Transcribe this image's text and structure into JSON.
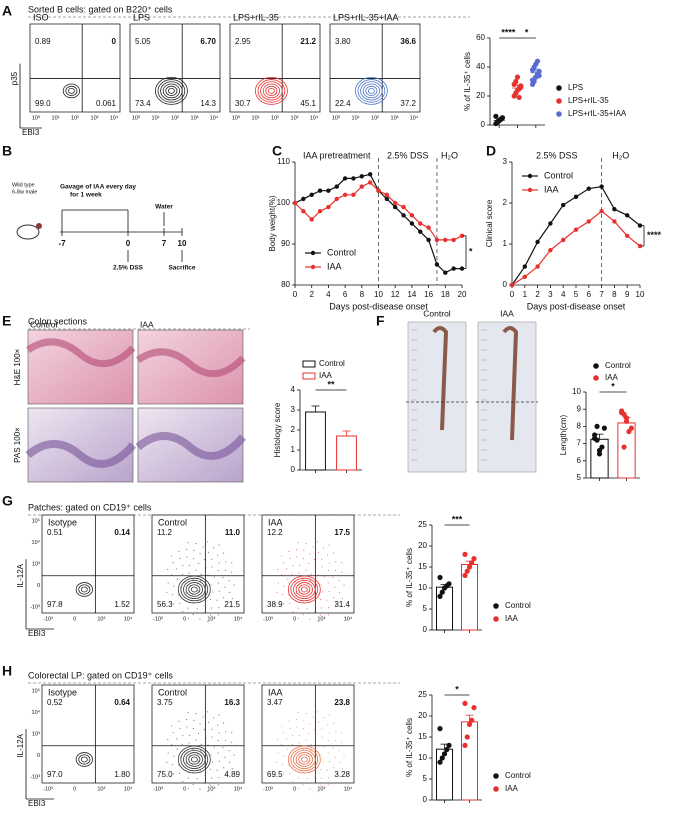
{
  "panels": {
    "A": {
      "label": "A",
      "title": "Sorted B cells: gated on B220⁺ cells",
      "x_axis": "EBI3",
      "y_axis": "p35",
      "x_ticks": [
        "10⁰",
        "10¹",
        "10²",
        "10³",
        "10⁴"
      ],
      "plots": [
        {
          "name": "ISO",
          "color": "#222222",
          "quadrants": [
            "0.89",
            "0",
            "99.0",
            "0.061"
          ]
        },
        {
          "name": "LPS",
          "color": "#222222",
          "quadrants": [
            "5.05",
            "6.70",
            "73.4",
            "14.3"
          ]
        },
        {
          "name": "LPS+rIL-35",
          "color": "#e8312f",
          "quadrants": [
            "2.95",
            "21.2",
            "30.7",
            "45.1"
          ]
        },
        {
          "name": "LPS+rIL-35+IAA",
          "color": "#4a74c9",
          "quadrants": [
            "3.80",
            "36.6",
            "22.4",
            "37.2"
          ]
        }
      ]
    },
    "B": {
      "label": "B",
      "mouse": [
        "Wild type",
        "6-8w male"
      ],
      "gavage": [
        "Gavage of IAA every day",
        "for 1 week"
      ],
      "water": "Water",
      "days": [
        "-7",
        "0",
        "7",
        "10"
      ],
      "dss": "2.5% DSS",
      "end": "Sacrifice"
    },
    "C": {
      "label": "C"
    },
    "D": {
      "label": "D"
    },
    "E": {
      "label": "E",
      "title": "Colon sections",
      "columns": [
        "Control",
        "IAA"
      ],
      "rows": [
        "H&E 100×",
        "PAS 100×"
      ]
    },
    "F": {
      "label": "F",
      "columns": [
        "Control",
        "IAA"
      ]
    },
    "G": {
      "label": "G",
      "title": "Patches: gated on CD19⁺ cells",
      "x_axis": "EBI3",
      "y_axis": "IL-12A",
      "x_ticks": [
        "-10³",
        "0",
        "10³",
        "10⁴"
      ],
      "y_ticks": [
        "10⁵",
        "10⁴",
        "10³",
        "0",
        "-10³"
      ],
      "plots": [
        {
          "name": "Isotype",
          "color": "#222222",
          "quadrants": [
            "0.51",
            "0.14",
            "97.8",
            "1.52"
          ]
        },
        {
          "name": "Control",
          "color": "#333333",
          "quadrants": [
            "11.2",
            "11.0",
            "56.3",
            "21.5"
          ]
        },
        {
          "name": "IAA",
          "color": "#e8312f",
          "quadrants": [
            "12.2",
            "17.5",
            "38.9",
            "31.4"
          ]
        }
      ]
    },
    "H": {
      "label": "H",
      "title": "Colorectal LP: gated on CD19⁺ cells",
      "x_axis": "EBI3",
      "y_axis": "IL-12A",
      "x_ticks": [
        "-10³",
        "0",
        "10³",
        "10⁴"
      ],
      "y_ticks": [
        "10⁵",
        "10⁴",
        "10³",
        "0",
        "-10³"
      ],
      "plots": [
        {
          "name": "Isotype",
          "color": "#222222",
          "quadrants": [
            "0.52",
            "0.64",
            "97.0",
            "1.80"
          ]
        },
        {
          "name": "Control",
          "color": "#333333",
          "quadrants": [
            "3.75",
            "16.3",
            "75.0",
            "4.89"
          ]
        },
        {
          "name": "IAA",
          "color": "#e8734f",
          "quadrants": [
            "3.47",
            "23.8",
            "69.5",
            "3.28"
          ]
        }
      ]
    }
  },
  "chart_data": [
    {
      "type": "dotplot",
      "style": "dots",
      "legend": "right",
      "ylabel": "% of IL-35⁺ cells",
      "ylim": [
        0,
        60
      ],
      "yticks": [
        0,
        20,
        40,
        60
      ],
      "groups": [
        {
          "name": "LPS",
          "color": "#111111",
          "mean": 3.2,
          "error": 0.8,
          "points": [
            1,
            2,
            3,
            4,
            5,
            6,
            2,
            3,
            4
          ]
        },
        {
          "name": "LPS+rIL-35",
          "color": "#e8312f",
          "mean": 25.5,
          "error": 2,
          "points": [
            20,
            22,
            24,
            25,
            27,
            28,
            30,
            33,
            19,
            26
          ]
        },
        {
          "name": "LPS+rIL-35+IAA",
          "color": "#5b6bd1",
          "mean": 36,
          "error": 2.5,
          "points": [
            28,
            30,
            33,
            35,
            37,
            38,
            40,
            42,
            44,
            34,
            31
          ]
        }
      ],
      "significance": [
        "****",
        "*"
      ]
    },
    {
      "type": "line",
      "xlabel": "Days post-disease onset",
      "ylabel": "Body weight(%)",
      "legend": "lower left",
      "xlim": [
        0,
        20
      ],
      "xticks": [
        0,
        2,
        4,
        6,
        8,
        10,
        12,
        14,
        16,
        18,
        20
      ],
      "ylim": [
        80,
        110
      ],
      "yticks": [
        80,
        90,
        100,
        110
      ],
      "x": [
        0,
        1,
        2,
        3,
        4,
        5,
        6,
        7,
        8,
        9,
        10,
        11,
        12,
        13,
        14,
        15,
        16,
        17,
        18,
        19,
        20
      ],
      "vlines": [
        10,
        17
      ],
      "phases": [
        "IAA pretreatment",
        "2.5% DSS",
        "H₂O"
      ],
      "significance": "*",
      "series": [
        {
          "name": "Control",
          "color": "#111111",
          "values": [
            100,
            101,
            102,
            103,
            103,
            104,
            106,
            106,
            106.5,
            107,
            103,
            101,
            99,
            97,
            95,
            93,
            91,
            85,
            83,
            84,
            84
          ]
        },
        {
          "name": "IAA",
          "color": "#e8312f",
          "values": [
            100,
            98,
            96,
            98,
            99,
            101,
            102,
            102,
            104,
            105,
            103,
            102,
            100,
            99,
            97,
            95,
            94,
            91,
            91,
            91,
            92
          ]
        }
      ]
    },
    {
      "type": "line",
      "xlabel": "Days post-disease onset",
      "ylabel": "Clinical score",
      "legend": "upper left",
      "xlim": [
        0,
        10
      ],
      "xticks": [
        0,
        1,
        2,
        3,
        4,
        5,
        6,
        7,
        8,
        9,
        10
      ],
      "ylim": [
        0,
        3
      ],
      "yticks": [
        0,
        1,
        2,
        3
      ],
      "x": [
        0,
        1,
        2,
        3,
        4,
        5,
        6,
        7,
        8,
        9,
        10
      ],
      "vlines": [
        7
      ],
      "phases": [
        "2.5% DSS",
        "H₂O"
      ],
      "significance": "****",
      "series": [
        {
          "name": "Control",
          "color": "#111111",
          "values": [
            0,
            0.45,
            1.05,
            1.5,
            1.95,
            2.15,
            2.35,
            2.4,
            1.85,
            1.7,
            1.45
          ]
        },
        {
          "name": "IAA",
          "color": "#e8312f",
          "values": [
            0,
            0.2,
            0.45,
            0.85,
            1.1,
            1.35,
            1.55,
            1.8,
            1.55,
            1.2,
            0.95
          ]
        }
      ]
    },
    {
      "type": "dotplot",
      "style": "bar",
      "legend": "top",
      "ylabel": "Histology score",
      "ylim": [
        0,
        4
      ],
      "yticks": [
        0,
        1,
        2,
        3,
        4
      ],
      "groups": [
        {
          "name": "Control",
          "color": "#111111",
          "mean": 2.9,
          "error": 0.3
        },
        {
          "name": "IAA",
          "color": "#e8312f",
          "mean": 1.7,
          "error": 0.25
        }
      ],
      "significance": [
        "**"
      ]
    },
    {
      "type": "dotplot",
      "style": "bar",
      "legend": "top",
      "ylabel": "Length(cm)",
      "ylim": [
        5,
        10
      ],
      "yticks": [
        5,
        6,
        7,
        8,
        9,
        10
      ],
      "groups": [
        {
          "name": "Control",
          "color": "#111111",
          "mean": 7.25,
          "error": 0.3,
          "points": [
            7.5,
            7.2,
            6.6,
            6.8,
            7.9,
            7.3,
            8.0,
            6.4
          ]
        },
        {
          "name": "IAA",
          "color": "#e8312f",
          "mean": 8.2,
          "error": 0.3,
          "points": [
            8.9,
            8.7,
            8.3,
            7.7,
            7.9,
            8.8,
            6.8,
            8.5
          ]
        }
      ],
      "significance": [
        "*"
      ]
    },
    {
      "type": "dotplot",
      "style": "bar",
      "legend": "right",
      "ylabel": "% of IL-35⁺ cells",
      "ylim": [
        0,
        25
      ],
      "yticks": [
        0,
        5,
        10,
        15,
        20,
        25
      ],
      "groups": [
        {
          "name": "Control",
          "color": "#111111",
          "mean": 10.2,
          "error": 0.6,
          "points": [
            8,
            9,
            10,
            10.5,
            11,
            12.5
          ]
        },
        {
          "name": "IAA",
          "color": "#e8312f",
          "mean": 15.6,
          "error": 0.8,
          "points": [
            13,
            14,
            15,
            16,
            17,
            18
          ]
        }
      ],
      "significance": [
        "***"
      ]
    },
    {
      "type": "dotplot",
      "style": "bar",
      "legend": "right",
      "ylabel": "% of IL-35⁺ cells",
      "ylim": [
        0,
        25
      ],
      "yticks": [
        0,
        5,
        10,
        15,
        20,
        25
      ],
      "groups": [
        {
          "name": "Control",
          "color": "#111111",
          "mean": 12.1,
          "error": 1.2,
          "points": [
            9,
            10,
            11,
            12,
            13,
            17
          ]
        },
        {
          "name": "IAA",
          "color": "#e8312f",
          "mean": 18.6,
          "error": 1.6,
          "points": [
            13,
            15,
            18,
            19,
            22,
            23
          ]
        }
      ],
      "significance": [
        "*"
      ]
    }
  ]
}
